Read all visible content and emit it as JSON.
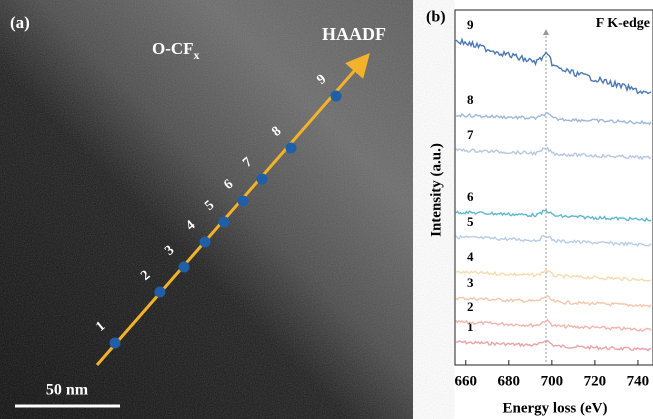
{
  "panel_a": {
    "label": "(a)",
    "mode": "HAADF",
    "region": {
      "text": "O-CF",
      "subscript": "x"
    },
    "scale_bar": "50 nm",
    "points": [
      "1",
      "2",
      "3",
      "4",
      "5",
      "6",
      "7",
      "8",
      "9"
    ]
  },
  "chart_data": {
    "type": "line",
    "panel_label": "(b)",
    "title": "F K-edge",
    "x_label": "Energy loss (eV)",
    "y_label": "Intensity (a.u.)",
    "xlim": [
      655,
      747
    ],
    "xticks": [
      660,
      680,
      700,
      720,
      740
    ],
    "series": [
      {
        "name": "1",
        "color": "#e8a3a8"
      },
      {
        "name": "2",
        "color": "#f0b5ae"
      },
      {
        "name": "3",
        "color": "#f2c8ad"
      },
      {
        "name": "4",
        "color": "#f3ddb0"
      },
      {
        "name": "5",
        "color": "#b7cde6"
      },
      {
        "name": "6",
        "color": "#5fb7cc"
      },
      {
        "name": "7",
        "color": "#b6c8df"
      },
      {
        "name": "8",
        "color": "#9fb8d8"
      },
      {
        "name": "9",
        "color": "#4a78b5"
      }
    ]
  }
}
